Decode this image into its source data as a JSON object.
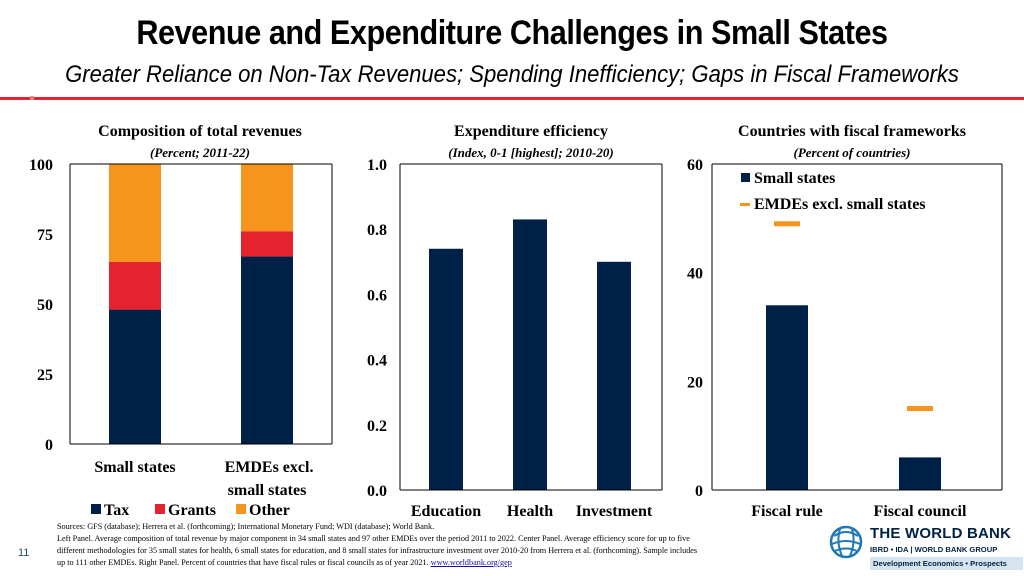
{
  "header": {
    "title": "Revenue and Expenditure Challenges in Small States",
    "subtitle": "Greater Reliance on Non-Tax Revenues; Spending Inefficiency; Gaps in Fiscal Frameworks"
  },
  "colors": {
    "navy": "#002147",
    "red": "#e5232e",
    "orange": "#f7941d",
    "accent": "#e5232e"
  },
  "chart_data": [
    {
      "type": "bar",
      "stacked": true,
      "title": "Composition of total revenues",
      "subtitle": "(Percent; 2011-22)",
      "categories": [
        "Small states",
        "EMDEs excl. small states"
      ],
      "series": [
        {
          "name": "Tax",
          "values": [
            48,
            67
          ],
          "color": "#002147"
        },
        {
          "name": "Grants",
          "values": [
            17,
            9
          ],
          "color": "#e5232e"
        },
        {
          "name": "Other",
          "values": [
            35,
            24
          ],
          "color": "#f7941d"
        }
      ],
      "ylim": [
        0,
        100
      ],
      "yticks": [
        "0",
        "25",
        "50",
        "75",
        "100"
      ],
      "legend": "bottom"
    },
    {
      "type": "bar",
      "title": "Expenditure efficiency",
      "subtitle": "(Index, 0-1 [highest]; 2010-20)",
      "categories": [
        "Education",
        "Health",
        "Investment"
      ],
      "values": [
        0.74,
        0.83,
        0.7
      ],
      "ylim": [
        0,
        1
      ],
      "yticks": [
        "0.0",
        "0.2",
        "0.4",
        "0.6",
        "0.8",
        "1.0"
      ],
      "color": "#002147"
    },
    {
      "type": "bar",
      "title": "Countries with fiscal frameworks",
      "subtitle": "(Percent of countries)",
      "categories": [
        "Fiscal rule",
        "Fiscal council"
      ],
      "series": [
        {
          "name": "Small states",
          "values": [
            34,
            6
          ],
          "color": "#002147",
          "marker": "bar"
        },
        {
          "name": "EMDEs excl. small states",
          "values": [
            49,
            15
          ],
          "color": "#f7941d",
          "marker": "dash"
        }
      ],
      "ylim": [
        0,
        60
      ],
      "yticks": [
        "0",
        "20",
        "40",
        "60"
      ],
      "legend": "top-right"
    }
  ],
  "footer": {
    "sources_line1": "Sources: GFS (database); Herrera et al. (forthcoming); International Monetary Fund; WDI (database); World Bank.",
    "sources_line2": "Left Panel. Average composition of total revenue by major component in 34 small states and 97 other EMDEs over the period 2011 to 2022. Center Panel. Average efficiency score for up to five",
    "sources_line3": "different methodologies for 35 small states for health, 6 small states for education, and 8 small states for infrastructure investment over 2010-20 from Herrera et al. (forthcoming). Sample includes",
    "sources_line4": "up to 111 other EMDEs. Right Panel. Percent of countries that have fiscal rules or fiscal councils as of year 2021.",
    "link_text": "www.worldbank.org/gep",
    "page_number": "11",
    "logo_name": "THE WORLD BANK",
    "logo_sub": "IBRD • IDA | WORLD BANK GROUP",
    "logo_footer": "Development Economics • Prospects"
  }
}
